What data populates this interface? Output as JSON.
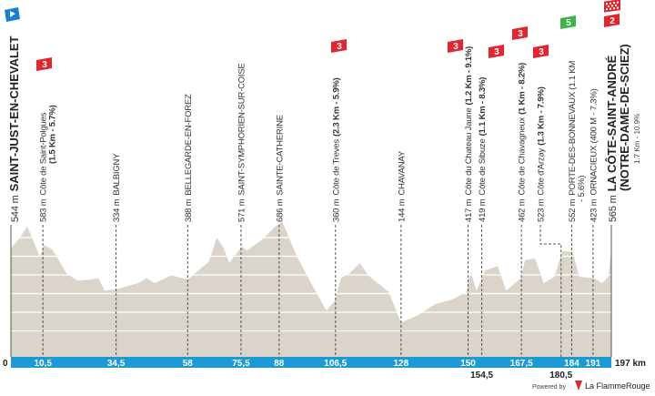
{
  "chart_data": {
    "type": "area",
    "xlabel": "",
    "ylabel": "",
    "x_unit_label": "197 km",
    "y_zero_label": "0",
    "xlim": [
      0,
      197
    ],
    "ylim": [
      0,
      700
    ],
    "grid": true,
    "colors": {
      "profile": "#dad4ca",
      "axis_bar": "#1b9ad6",
      "climb_badge": "#e3262d",
      "sprint_badge": "#3db54a",
      "start_flag": "#1b7fd0"
    },
    "profile": {
      "km": [
        0,
        3,
        5.3,
        9.5,
        10.8,
        13.6,
        18.4,
        21.8,
        26,
        28.7,
        30.7,
        34.8,
        41.7,
        44.5,
        47.2,
        52.7,
        58,
        65,
        67.5,
        69.8,
        71.6,
        75.8,
        77.4,
        82.9,
        86.3,
        89,
        93.9,
        98,
        103.5,
        106.2,
        108.3,
        111,
        114.5,
        117.2,
        124,
        128,
        133.7,
        139,
        144.6,
        149.4,
        150.8,
        152.8,
        155.6,
        159.7,
        162.5,
        167.3,
        168.7,
        172,
        174.8,
        178.3,
        181,
        184.4,
        186.5,
        191.3,
        194,
        196,
        197
      ],
      "elev": [
        544,
        600,
        661,
        497,
        560,
        537,
        405,
        370,
        375,
        383,
        316,
        324,
        356,
        383,
        356,
        398,
        375,
        472,
        600,
        545,
        464,
        553,
        530,
        595,
        653,
        686,
        497,
        370,
        209,
        260,
        383,
        407,
        464,
        398,
        308,
        144,
        185,
        243,
        267,
        308,
        415,
        316,
        423,
        448,
        316,
        383,
        480,
        488,
        356,
        390,
        530,
        520,
        390,
        383,
        356,
        390,
        540
      ]
    },
    "km_ticks_in_bar": [
      "10,5",
      "34,5",
      "58",
      "75,5",
      "88",
      "106,5",
      "128",
      "150",
      "167,5",
      "184",
      "191"
    ],
    "km_ticks_below_bar": [
      "154,5",
      "180,5"
    ],
    "labels": [
      {
        "km": 10.5,
        "alt": "583 m",
        "name": "Côte de Saint-Polgues",
        "detail": "",
        "line2": "(1.5 Km - 5.7%)"
      },
      {
        "km": 34.5,
        "alt": "334 m",
        "name": "BALBIGNY",
        "detail": "",
        "line2": ""
      },
      {
        "km": 58,
        "alt": "388 m",
        "name": "BELLEGARDE-EN-FOREZ",
        "detail": "",
        "line2": ""
      },
      {
        "km": 75.5,
        "alt": "571 m",
        "name": "SAINT-SYMPHORIEN-SUR-COISE",
        "detail": "",
        "line2": ""
      },
      {
        "km": 88,
        "alt": "686 m",
        "name": "SAINTE-CATHERINE",
        "detail": "",
        "line2": ""
      },
      {
        "km": 106.5,
        "alt": "360 m",
        "name": "Côte de Treves",
        "detail": "(2.3 Km - 5.9%)",
        "line2": ""
      },
      {
        "km": 128,
        "alt": "144 m",
        "name": "CHAVANAY",
        "detail": "",
        "line2": ""
      },
      {
        "km": 150,
        "alt": "417 m",
        "name": "Côte du Chateau Jaune",
        "detail": "(1.2 Km - 9.1%)",
        "line2": ""
      },
      {
        "km": 154.5,
        "alt": "419 m",
        "name": "Côte de Sibuze",
        "detail": "(1.1 Km - 8.3%)",
        "line2": ""
      },
      {
        "km": 167.5,
        "alt": "462 m",
        "name": "Côte de Chavagneux",
        "detail": "(1 Km - 8.2%)",
        "line2": ""
      },
      {
        "km": 180.5,
        "alt": "523 m",
        "name": "Côte d'Arzay",
        "detail": "(1.3 Km - 7.9%)",
        "line2": ""
      },
      {
        "km": 184,
        "alt": "552 m",
        "name": "PORTE-DES-BONNEVAUX (1.1 KM",
        "detail": "",
        "line2": "- 5.6%)"
      },
      {
        "km": 191,
        "alt": "423 m",
        "name": "ORNACIEUX (400 M - 7.3%)",
        "detail": "",
        "line2": ""
      }
    ],
    "start": {
      "alt": "544 m",
      "name": "SAINT-JUST-EN-CHEVALET"
    },
    "finish": {
      "alt": "565 m",
      "name": "LA CÔTE-SAINT-ANDRÉ",
      "name2": "(NOTRE-DAME-DE-SCIEZ)",
      "detail": "1.7 Km - 10.9%"
    },
    "badges": [
      {
        "type": "climb",
        "text": "3",
        "km": 10.5
      },
      {
        "type": "climb",
        "text": "3",
        "km": 106.5
      },
      {
        "type": "climb",
        "text": "3",
        "km": 150
      },
      {
        "type": "climb",
        "text": "3",
        "km": 154.5
      },
      {
        "type": "climb",
        "text": "3",
        "km": 167.5
      },
      {
        "type": "climb",
        "text": "3",
        "km": 180.5
      },
      {
        "type": "sprint",
        "text": "5",
        "km": 184
      },
      {
        "type": "climb",
        "text": "2",
        "km": 197
      }
    ]
  },
  "footer": {
    "powered_by": "Powered by",
    "brand": "La FlammeRouge"
  }
}
